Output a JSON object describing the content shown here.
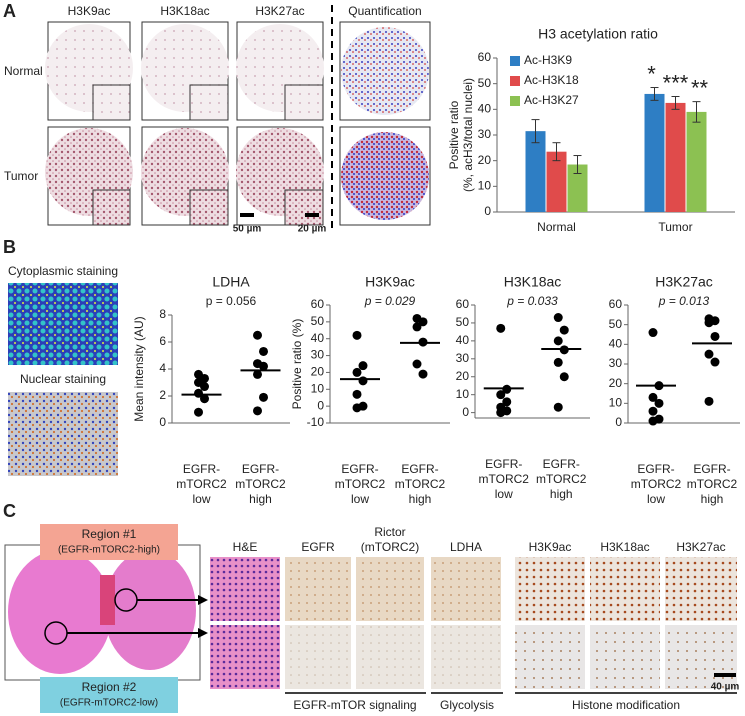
{
  "panel_labels": [
    "A",
    "B",
    "C"
  ],
  "panel_a": {
    "columns": [
      "H3K9ac",
      "H3K18ac",
      "H3K27ac",
      "Quantification"
    ],
    "rows": [
      "Normal",
      "Tumor"
    ],
    "scale_labels": [
      "50 µm",
      "20 µm"
    ]
  },
  "panel_b": {
    "image_labels": [
      "Cytoplasmic staining",
      "Nuclear staining"
    ]
  },
  "panel_c": {
    "regions": [
      [
        "Region #1",
        "(EGFR-mTORC2-high)"
      ],
      [
        "Region #2",
        "(EGFR-mTORC2-low)"
      ]
    ],
    "columns": [
      [
        "H&E"
      ],
      [
        "EGFR"
      ],
      [
        "Rictor",
        "(mTORC2)"
      ],
      [
        "LDHA"
      ],
      [
        "H3K9ac"
      ],
      [
        "H3K18ac"
      ],
      [
        "H3K27ac"
      ]
    ],
    "scale_label": "40 µm",
    "groups": [
      "EGFR-mTOR signaling",
      "Glycolysis",
      "Histone modification"
    ]
  },
  "chart_data": [
    {
      "type": "bar",
      "title": "H3 acetylation ratio",
      "ylabel": [
        "Positive ratio",
        "(%, acH3/total nuclei)"
      ],
      "categories": [
        "Normal",
        "Tumor"
      ],
      "series": [
        {
          "name": "Ac-H3K9",
          "color": "#2e7ec4",
          "values": [
            31.5,
            46
          ],
          "errors": [
            4.5,
            2.5
          ],
          "annotations": [
            null,
            "*"
          ]
        },
        {
          "name": "Ac-H3K18",
          "color": "#e04b4b",
          "values": [
            23.5,
            42.5
          ],
          "errors": [
            3.5,
            2.5
          ],
          "annotations": [
            null,
            "***"
          ]
        },
        {
          "name": "Ac-H3K27",
          "color": "#8cc152",
          "values": [
            18.5,
            39
          ],
          "errors": [
            3.5,
            4
          ],
          "annotations": [
            null,
            "**"
          ]
        }
      ],
      "ylim": [
        0,
        60
      ],
      "yticks": [
        0,
        10,
        20,
        30,
        40,
        50,
        60
      ]
    },
    {
      "type": "strip",
      "title": "LDHA",
      "ylabel": "Mean intensity (AU)",
      "pvalue": "p = 0.056",
      "p_style": "normal",
      "categories": [
        [
          "EGFR-",
          "mTORC2",
          "low"
        ],
        [
          "EGFR-",
          "mTORC2",
          "high"
        ]
      ],
      "values": [
        [
          3.6,
          3.3,
          3.0,
          2.7,
          2.2,
          1.8,
          0.8
        ],
        [
          6.5,
          5.3,
          4.4,
          4.2,
          3.6,
          1.9,
          0.9
        ]
      ],
      "means": [
        2.1,
        3.9
      ],
      "ylim": [
        0,
        8
      ],
      "yticks": [
        0,
        2,
        4,
        6,
        8
      ]
    },
    {
      "type": "strip",
      "title": "H3K9ac",
      "ylabel": "Positive ratio (%)",
      "pvalue": "p = 0.029",
      "p_style": "italic",
      "categories": [
        [
          "EGFR-",
          "mTORC2",
          "low"
        ],
        [
          "EGFR-",
          "mTORC2",
          "high"
        ]
      ],
      "values": [
        [
          42,
          24,
          20,
          15,
          7,
          0,
          -1
        ],
        [
          52,
          50,
          47,
          38,
          25,
          19
        ]
      ],
      "means": [
        16,
        37.5
      ],
      "ylim": [
        -10,
        60
      ],
      "yticks": [
        -10,
        0,
        10,
        20,
        30,
        40,
        50,
        60
      ]
    },
    {
      "type": "strip",
      "title": "H3K18ac",
      "pvalue": "p = 0.033",
      "p_style": "italic",
      "categories": [
        [
          "EGFR-",
          "mTORC2",
          "low"
        ],
        [
          "EGFR-",
          "mTORC2",
          "high"
        ]
      ],
      "values": [
        [
          47,
          13,
          10,
          6,
          3,
          1,
          0
        ],
        [
          53,
          46,
          40,
          35,
          28,
          20,
          3
        ]
      ],
      "means": [
        13.5,
        35.5
      ],
      "ylim": [
        -3,
        60
      ],
      "yticks": [
        0,
        10,
        20,
        30,
        40,
        50,
        60
      ]
    },
    {
      "type": "strip",
      "title": "H3K27ac",
      "pvalue": "p = 0.013",
      "p_style": "italic",
      "categories": [
        [
          "EGFR-",
          "mTORC2",
          "low"
        ],
        [
          "EGFR-",
          "mTORC2",
          "high"
        ]
      ],
      "values": [
        [
          46,
          19,
          13,
          10,
          6,
          2,
          1
        ],
        [
          53,
          52,
          51,
          44,
          35,
          31,
          11
        ]
      ],
      "means": [
        19,
        40.5
      ],
      "ylim": [
        0,
        60
      ],
      "yticks": [
        0,
        10,
        20,
        30,
        40,
        50,
        60
      ]
    }
  ]
}
